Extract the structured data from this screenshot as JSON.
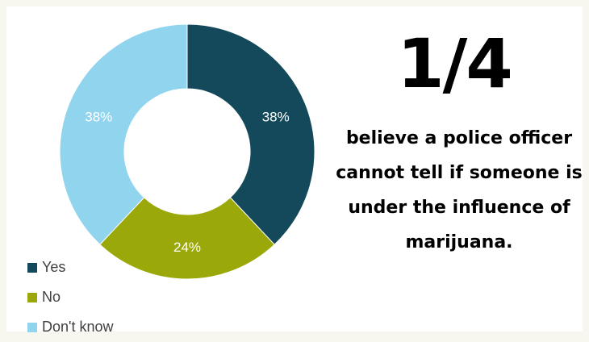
{
  "headline": "1/4",
  "statement": "believe a police officer cannot tell if someone is under the influence of marijuana.",
  "chart_data": {
    "type": "pie",
    "categories": [
      "Yes",
      "No",
      "Don't know"
    ],
    "values": [
      38,
      24,
      38
    ],
    "labels": [
      "38%",
      "24%",
      "38%"
    ],
    "colors": [
      "#14495b",
      "#9aa80a",
      "#90d4ee"
    ],
    "legend_position": "bottom-left",
    "donut": true
  }
}
